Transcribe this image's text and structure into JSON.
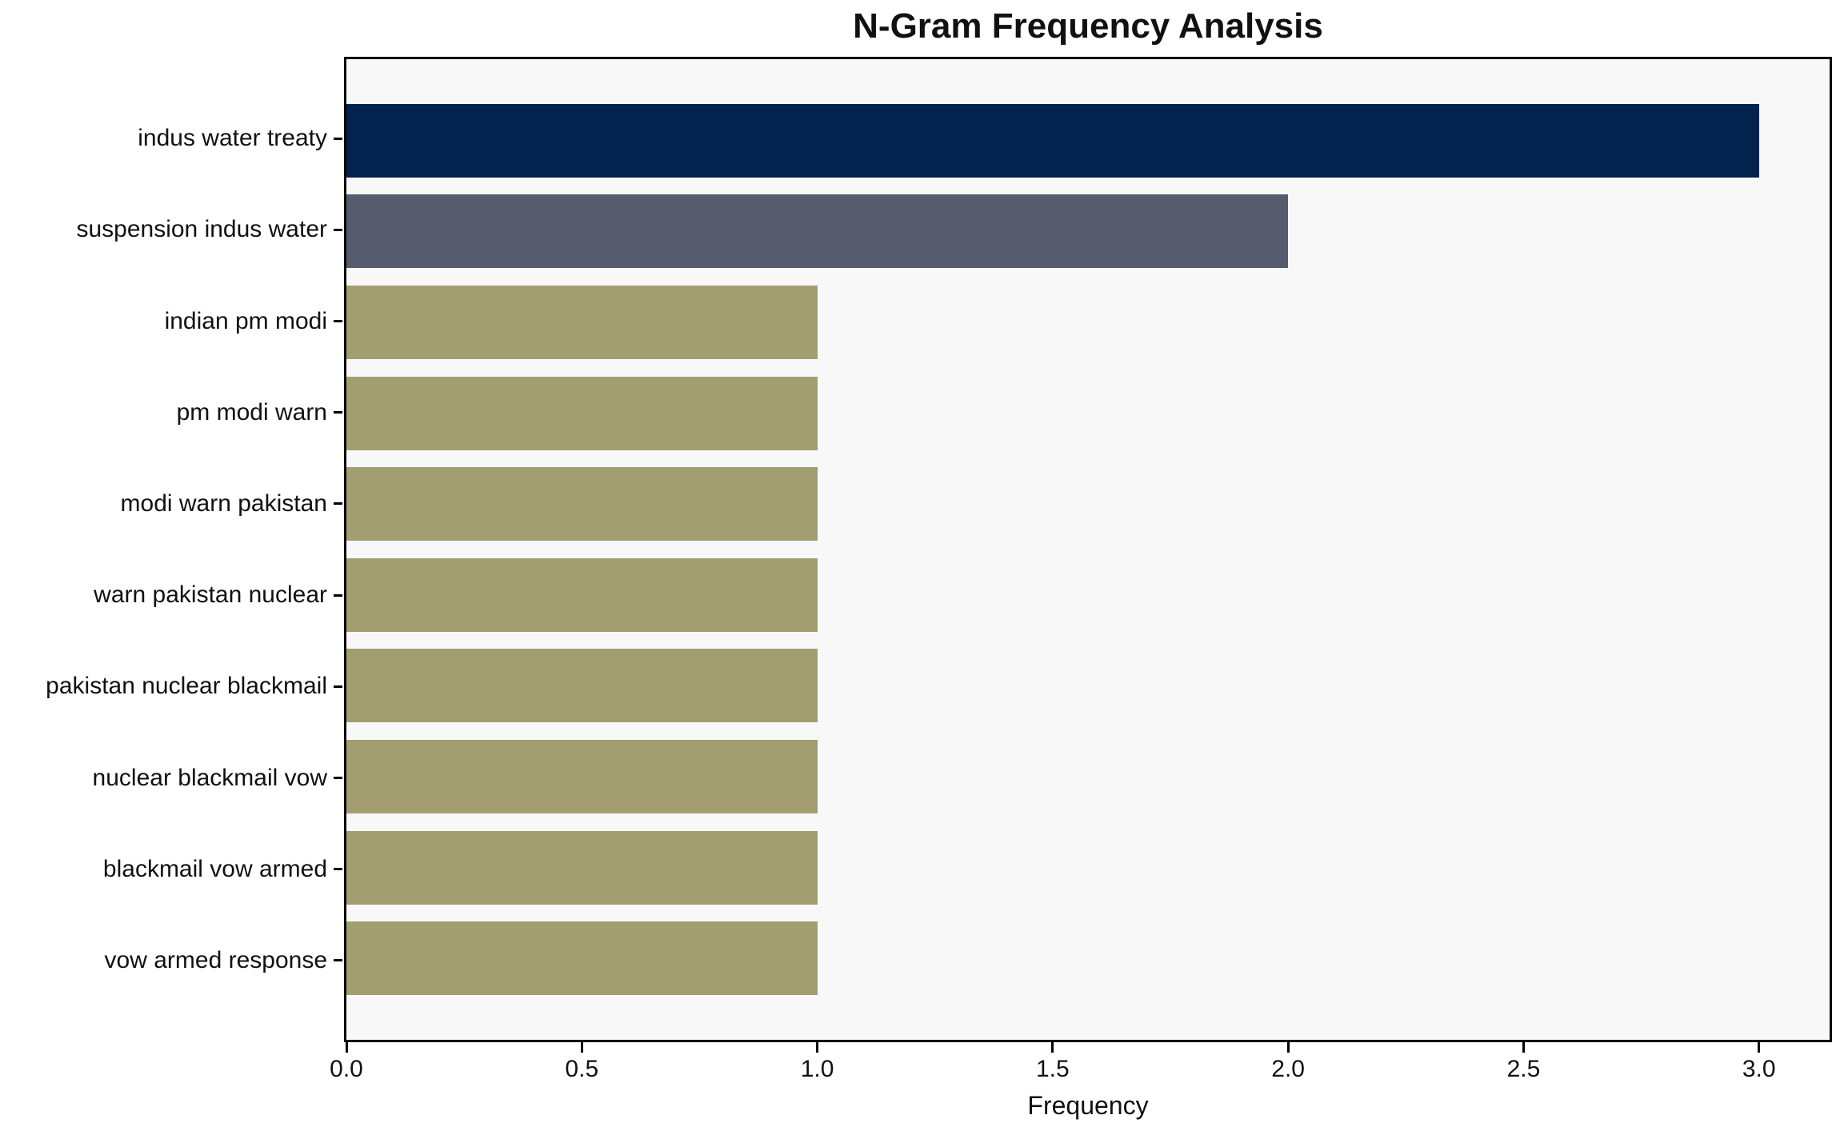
{
  "chart_data": {
    "type": "bar",
    "orientation": "horizontal",
    "title": "N-Gram Frequency Analysis",
    "xlabel": "Frequency",
    "ylabel": "",
    "categories": [
      "indus water treaty",
      "suspension indus water",
      "indian pm modi",
      "pm modi warn",
      "modi warn pakistan",
      "warn pakistan nuclear",
      "pakistan nuclear blackmail",
      "nuclear blackmail vow",
      "blackmail vow armed",
      "vow armed response"
    ],
    "values": [
      3,
      2,
      1,
      1,
      1,
      1,
      1,
      1,
      1,
      1
    ],
    "bar_colors": [
      "#01234e",
      "#565c6d",
      "#a39d72",
      "#a39d72",
      "#a39d72",
      "#a39d72",
      "#a39d72",
      "#a39d72",
      "#a39d72",
      "#a39d72"
    ],
    "xticks": [
      "0.0",
      "0.5",
      "1.0",
      "1.5",
      "2.0",
      "2.5",
      "3.0"
    ],
    "xlim": [
      0,
      3.15
    ],
    "grid": false,
    "legend": null,
    "plot_background": "#f8f8f8",
    "figure_background": "#ffffff",
    "spine_color": "#000000"
  }
}
